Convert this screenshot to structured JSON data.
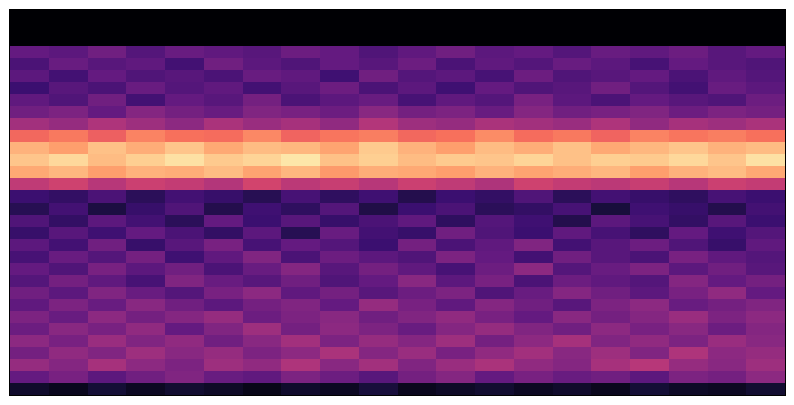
{
  "chart_data": {
    "type": "heatmap",
    "color": "magma",
    "tick_labels": false,
    "grid": false,
    "zlim": [
      0,
      1
    ],
    "cells": [
      [
        0,
        0,
        0,
        0,
        0,
        0,
        0,
        0,
        0,
        0,
        0,
        0,
        0,
        0,
        0,
        0,
        0,
        0,
        0,
        0
      ],
      [
        0,
        0,
        0,
        0,
        0,
        0,
        0,
        0,
        0,
        0,
        0,
        0,
        0,
        0,
        0,
        0,
        0,
        0,
        0,
        0
      ],
      [
        0,
        0,
        0,
        0,
        0,
        0,
        0,
        0,
        0,
        0,
        0,
        0,
        0,
        0,
        0,
        0,
        0,
        0,
        0,
        0
      ],
      [
        0.3,
        0.28,
        0.33,
        0.26,
        0.31,
        0.29,
        0.27,
        0.32,
        0.3,
        0.25,
        0.29,
        0.33,
        0.28,
        0.3,
        0.26,
        0.31,
        0.29,
        0.32,
        0.27,
        0.3
      ],
      [
        0.24,
        0.31,
        0.27,
        0.29,
        0.22,
        0.33,
        0.28,
        0.25,
        0.3,
        0.27,
        0.32,
        0.24,
        0.29,
        0.26,
        0.31,
        0.28,
        0.23,
        0.3,
        0.27,
        0.25
      ],
      [
        0.28,
        0.22,
        0.3,
        0.25,
        0.27,
        0.24,
        0.31,
        0.29,
        0.21,
        0.33,
        0.26,
        0.28,
        0.23,
        0.32,
        0.25,
        0.27,
        0.3,
        0.24,
        0.29,
        0.26
      ],
      [
        0.2,
        0.27,
        0.24,
        0.31,
        0.26,
        0.29,
        0.22,
        0.27,
        0.32,
        0.24,
        0.28,
        0.21,
        0.3,
        0.25,
        0.27,
        0.33,
        0.26,
        0.22,
        0.31,
        0.28
      ],
      [
        0.29,
        0.25,
        0.33,
        0.22,
        0.3,
        0.27,
        0.34,
        0.24,
        0.28,
        0.31,
        0.23,
        0.29,
        0.26,
        0.35,
        0.28,
        0.24,
        0.3,
        0.27,
        0.25,
        0.32
      ],
      [
        0.33,
        0.36,
        0.3,
        0.38,
        0.34,
        0.31,
        0.37,
        0.35,
        0.32,
        0.39,
        0.34,
        0.36,
        0.31,
        0.38,
        0.33,
        0.35,
        0.37,
        0.32,
        0.36,
        0.34
      ],
      [
        0.45,
        0.42,
        0.48,
        0.44,
        0.4,
        0.47,
        0.43,
        0.46,
        0.41,
        0.49,
        0.44,
        0.42,
        0.47,
        0.45,
        0.43,
        0.48,
        0.41,
        0.46,
        0.44,
        0.47
      ],
      [
        0.68,
        0.72,
        0.66,
        0.74,
        0.7,
        0.69,
        0.75,
        0.67,
        0.71,
        0.73,
        0.68,
        0.7,
        0.76,
        0.69,
        0.72,
        0.67,
        0.74,
        0.71,
        0.73,
        0.7
      ],
      [
        0.84,
        0.8,
        0.87,
        0.83,
        0.88,
        0.82,
        0.86,
        0.85,
        0.81,
        0.89,
        0.84,
        0.8,
        0.86,
        0.83,
        0.87,
        0.82,
        0.85,
        0.88,
        0.84,
        0.86
      ],
      [
        0.88,
        0.92,
        0.86,
        0.9,
        0.94,
        0.89,
        0.91,
        0.95,
        0.87,
        0.9,
        0.86,
        0.89,
        0.88,
        0.91,
        0.87,
        0.9,
        0.89,
        0.92,
        0.88,
        0.94
      ],
      [
        0.82,
        0.85,
        0.8,
        0.84,
        0.83,
        0.86,
        0.81,
        0.85,
        0.79,
        0.83,
        0.82,
        0.8,
        0.84,
        0.81,
        0.83,
        0.85,
        0.8,
        0.84,
        0.86,
        0.82
      ],
      [
        0.52,
        0.56,
        0.5,
        0.55,
        0.53,
        0.49,
        0.57,
        0.51,
        0.54,
        0.5,
        0.55,
        0.52,
        0.48,
        0.56,
        0.53,
        0.51,
        0.54,
        0.5,
        0.55,
        0.53
      ],
      [
        0.2,
        0.18,
        0.24,
        0.16,
        0.22,
        0.19,
        0.15,
        0.23,
        0.17,
        0.21,
        0.14,
        0.2,
        0.18,
        0.25,
        0.16,
        0.22,
        0.19,
        0.17,
        0.23,
        0.2
      ],
      [
        0.15,
        0.22,
        0.12,
        0.19,
        0.25,
        0.14,
        0.21,
        0.17,
        0.26,
        0.13,
        0.2,
        0.24,
        0.16,
        0.18,
        0.23,
        0.11,
        0.21,
        0.19,
        0.14,
        0.22
      ],
      [
        0.25,
        0.18,
        0.28,
        0.22,
        0.16,
        0.3,
        0.2,
        0.27,
        0.19,
        0.24,
        0.29,
        0.17,
        0.26,
        0.21,
        0.14,
        0.28,
        0.23,
        0.18,
        0.27,
        0.2
      ],
      [
        0.19,
        0.27,
        0.21,
        0.3,
        0.24,
        0.18,
        0.28,
        0.15,
        0.31,
        0.22,
        0.19,
        0.33,
        0.25,
        0.2,
        0.29,
        0.23,
        0.17,
        0.3,
        0.21,
        0.26
      ],
      [
        0.28,
        0.22,
        0.33,
        0.19,
        0.27,
        0.35,
        0.23,
        0.3,
        0.26,
        0.2,
        0.34,
        0.24,
        0.29,
        0.37,
        0.22,
        0.27,
        0.32,
        0.25,
        0.19,
        0.29
      ],
      [
        0.23,
        0.31,
        0.26,
        0.34,
        0.21,
        0.29,
        0.37,
        0.24,
        0.32,
        0.28,
        0.25,
        0.36,
        0.3,
        0.22,
        0.33,
        0.27,
        0.24,
        0.35,
        0.29,
        0.26
      ],
      [
        0.3,
        0.25,
        0.35,
        0.28,
        0.33,
        0.24,
        0.31,
        0.38,
        0.27,
        0.34,
        0.29,
        0.23,
        0.32,
        0.4,
        0.26,
        0.31,
        0.36,
        0.28,
        0.33,
        0.27
      ],
      [
        0.26,
        0.34,
        0.29,
        0.23,
        0.37,
        0.31,
        0.27,
        0.33,
        0.25,
        0.3,
        0.39,
        0.28,
        0.35,
        0.24,
        0.32,
        0.29,
        0.26,
        0.38,
        0.3,
        0.34
      ],
      [
        0.33,
        0.28,
        0.37,
        0.31,
        0.26,
        0.35,
        0.4,
        0.29,
        0.34,
        0.27,
        0.32,
        0.36,
        0.25,
        0.31,
        0.38,
        0.33,
        0.28,
        0.35,
        0.41,
        0.3
      ],
      [
        0.29,
        0.36,
        0.31,
        0.39,
        0.33,
        0.28,
        0.34,
        0.37,
        0.3,
        0.42,
        0.35,
        0.29,
        0.38,
        0.33,
        0.27,
        0.36,
        0.4,
        0.31,
        0.34,
        0.37
      ],
      [
        0.36,
        0.31,
        0.4,
        0.34,
        0.38,
        0.42,
        0.32,
        0.36,
        0.39,
        0.33,
        0.37,
        0.41,
        0.35,
        0.3,
        0.39,
        0.34,
        0.38,
        0.43,
        0.36,
        0.4
      ],
      [
        0.32,
        0.39,
        0.35,
        0.41,
        0.3,
        0.37,
        0.44,
        0.34,
        0.4,
        0.36,
        0.31,
        0.38,
        0.42,
        0.37,
        0.33,
        0.4,
        0.35,
        0.39,
        0.32,
        0.38
      ],
      [
        0.4,
        0.35,
        0.43,
        0.37,
        0.41,
        0.33,
        0.39,
        0.45,
        0.36,
        0.42,
        0.38,
        0.44,
        0.34,
        0.4,
        0.46,
        0.37,
        0.41,
        0.36,
        0.43,
        0.39
      ],
      [
        0.34,
        0.41,
        0.37,
        0.44,
        0.39,
        0.42,
        0.36,
        0.4,
        0.47,
        0.38,
        0.43,
        0.35,
        0.41,
        0.45,
        0.39,
        0.44,
        0.37,
        0.48,
        0.4,
        0.42
      ],
      [
        0.42,
        0.38,
        0.46,
        0.4,
        0.36,
        0.44,
        0.41,
        0.48,
        0.39,
        0.45,
        0.37,
        0.43,
        0.47,
        0.41,
        0.38,
        0.46,
        0.5,
        0.42,
        0.39,
        0.44
      ],
      [
        0.3,
        0.35,
        0.28,
        0.33,
        0.37,
        0.31,
        0.29,
        0.36,
        0.32,
        0.27,
        0.34,
        0.38,
        0.3,
        0.35,
        0.31,
        0.33,
        0.28,
        0.36,
        0.34,
        0.4
      ],
      [
        0.08,
        0.05,
        0.1,
        0.06,
        0.09,
        0.07,
        0.04,
        0.08,
        0.06,
        0.11,
        0.05,
        0.07,
        0.09,
        0.06,
        0.08,
        0.05,
        0.1,
        0.07,
        0.06,
        0.09
      ]
    ]
  }
}
